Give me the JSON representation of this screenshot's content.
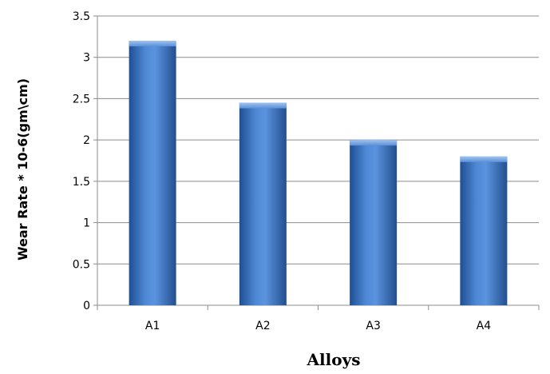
{
  "chart_data": {
    "type": "bar",
    "categories": [
      "A1",
      "A2",
      "A3",
      "A4"
    ],
    "values": [
      3.2,
      2.45,
      2.0,
      1.8
    ],
    "title": "",
    "xlabel": "Alloys",
    "ylabel": "Wear Rate * 10-6(gm\\cm)",
    "ylim": [
      0,
      3.5
    ],
    "yticks": [
      "0",
      "0.5",
      "1",
      "1.5",
      "2",
      "2.5",
      "3",
      "3.5"
    ],
    "grid": true,
    "legend": "none",
    "bar_color": "#3f76c4",
    "grid_color": "#8c8c8c"
  }
}
